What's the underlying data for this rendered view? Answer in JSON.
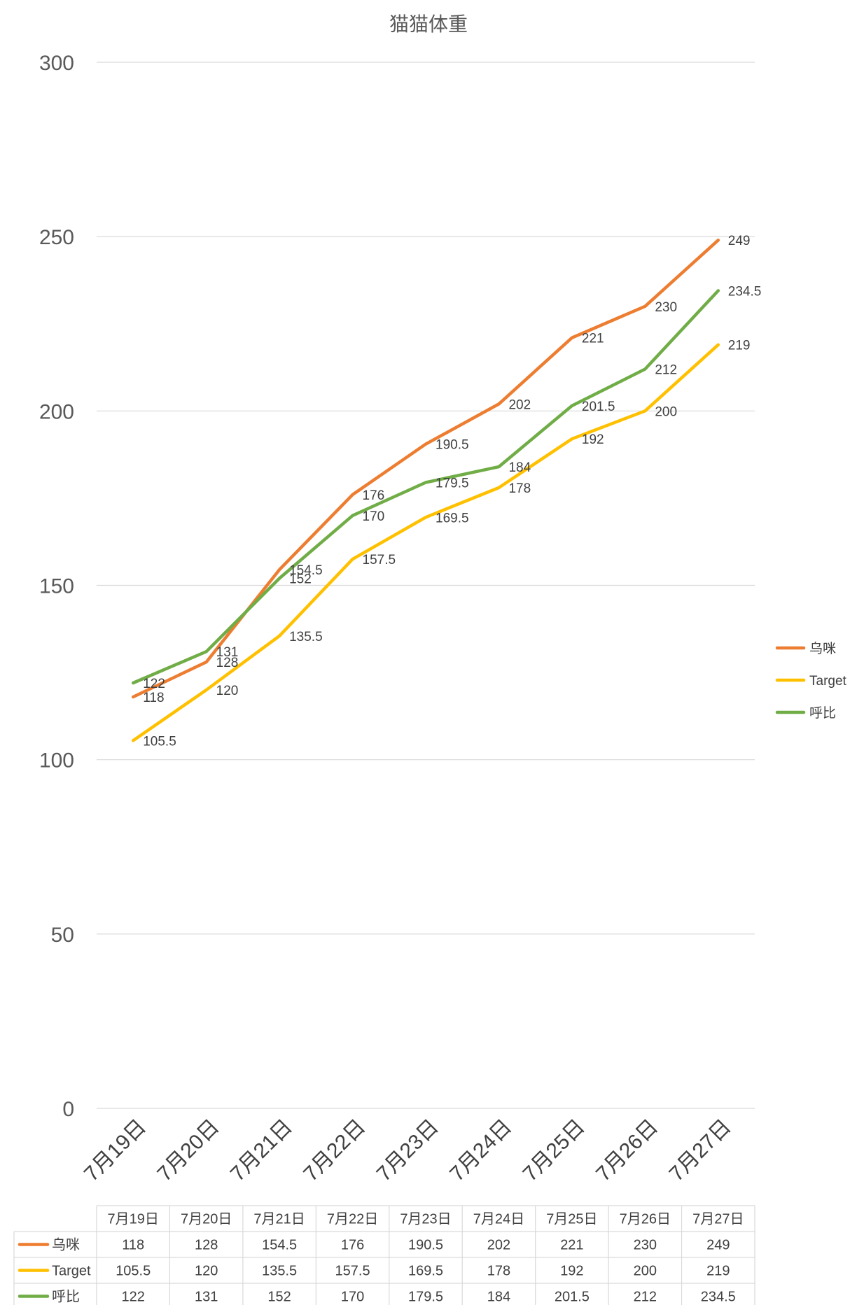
{
  "chart_data": {
    "type": "line",
    "title": "猫猫体重",
    "xlabel": "",
    "ylabel": "",
    "ylim": [
      0,
      300
    ],
    "yticks": [
      0,
      50,
      100,
      150,
      200,
      250,
      300
    ],
    "categories": [
      "7月19日",
      "7月20日",
      "7月21日",
      "7月22日",
      "7月23日",
      "7月24日",
      "7月25日",
      "7月26日",
      "7月27日"
    ],
    "series": [
      {
        "name": "乌咪",
        "color": "#ED7D31",
        "values": [
          118,
          128,
          154.5,
          176,
          190.5,
          202,
          221,
          230,
          249
        ]
      },
      {
        "name": "Target",
        "color": "#FFC000",
        "values": [
          105.5,
          120,
          135.5,
          157.5,
          169.5,
          178,
          192,
          200,
          219
        ]
      },
      {
        "name": "呼比",
        "color": "#70AD47",
        "values": [
          122,
          131,
          152,
          170,
          179.5,
          184,
          201.5,
          212,
          234.5
        ]
      }
    ],
    "grid": true,
    "legend": "right",
    "data_table": true
  }
}
